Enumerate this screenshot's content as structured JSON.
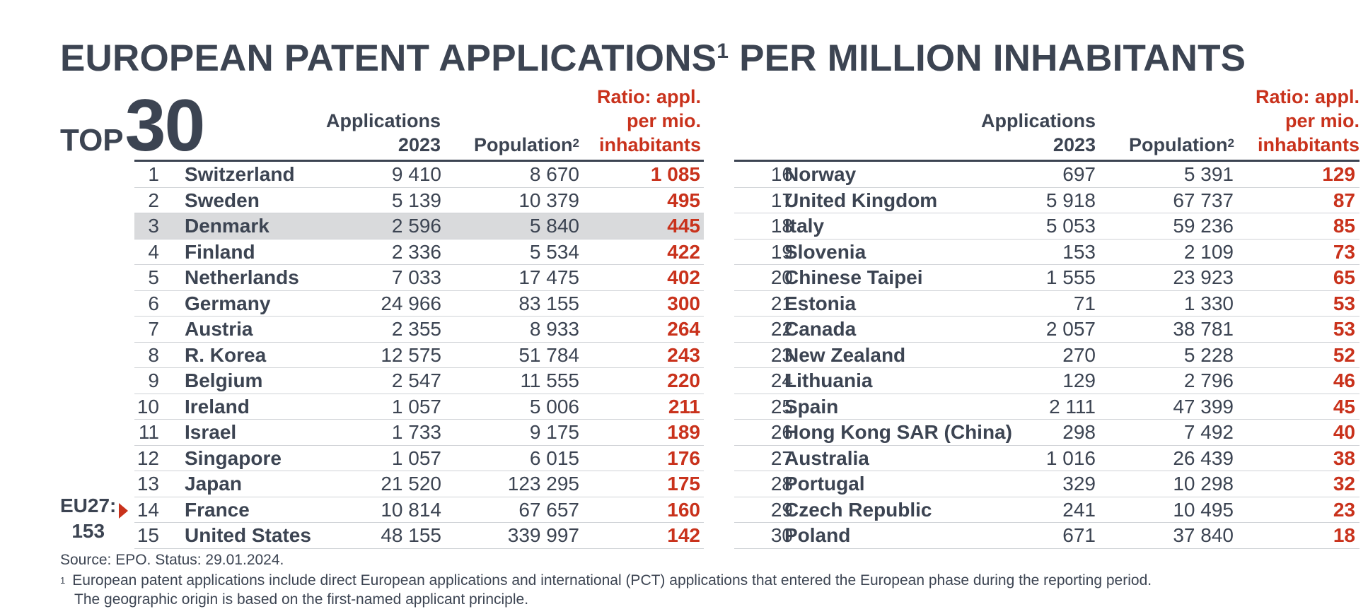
{
  "title": {
    "main": "EUROPEAN PATENT APPLICATIONS",
    "sup": "1",
    "rest": " PER MILLION INHABITANTS"
  },
  "badge": {
    "top": "TOP",
    "num": "30"
  },
  "headers": {
    "apps_l1": "Applications",
    "apps_l2": "2023",
    "pop": "Population",
    "pop_sup": "2",
    "ratio_l1": "Ratio: appl.",
    "ratio_l2": "per mio.",
    "ratio_l3": "inhabitants"
  },
  "left_rows": [
    {
      "rank": "1",
      "country": "Switzerland",
      "apps": "9 410",
      "pop": "8 670",
      "ratio": "1 085"
    },
    {
      "rank": "2",
      "country": "Sweden",
      "apps": "5 139",
      "pop": "10 379",
      "ratio": "495"
    },
    {
      "rank": "3",
      "country": "Denmark",
      "apps": "2 596",
      "pop": "5 840",
      "ratio": "445"
    },
    {
      "rank": "4",
      "country": "Finland",
      "apps": "2 336",
      "pop": "5 534",
      "ratio": "422"
    },
    {
      "rank": "5",
      "country": "Netherlands",
      "apps": "7 033",
      "pop": "17 475",
      "ratio": "402"
    },
    {
      "rank": "6",
      "country": "Germany",
      "apps": "24 966",
      "pop": "83 155",
      "ratio": "300"
    },
    {
      "rank": "7",
      "country": "Austria",
      "apps": "2 355",
      "pop": "8 933",
      "ratio": "264"
    },
    {
      "rank": "8",
      "country": "R. Korea",
      "apps": "12 575",
      "pop": "51 784",
      "ratio": "243"
    },
    {
      "rank": "9",
      "country": "Belgium",
      "apps": "2 547",
      "pop": "11 555",
      "ratio": "220"
    },
    {
      "rank": "10",
      "country": "Ireland",
      "apps": "1 057",
      "pop": "5 006",
      "ratio": "211"
    },
    {
      "rank": "11",
      "country": "Israel",
      "apps": "1 733",
      "pop": "9 175",
      "ratio": "189"
    },
    {
      "rank": "12",
      "country": "Singapore",
      "apps": "1 057",
      "pop": "6 015",
      "ratio": "176"
    },
    {
      "rank": "13",
      "country": "Japan",
      "apps": "21 520",
      "pop": "123 295",
      "ratio": "175"
    },
    {
      "rank": "14",
      "country": "France",
      "apps": "10 814",
      "pop": "67 657",
      "ratio": "160"
    },
    {
      "rank": "15",
      "country": "United States",
      "apps": "48 155",
      "pop": "339 997",
      "ratio": "142"
    }
  ],
  "right_rows": [
    {
      "rank": "16",
      "country": "Norway",
      "apps": "697",
      "pop": "5 391",
      "ratio": "129"
    },
    {
      "rank": "17",
      "country": "United Kingdom",
      "apps": "5 918",
      "pop": "67 737",
      "ratio": "87"
    },
    {
      "rank": "18",
      "country": "Italy",
      "apps": "5 053",
      "pop": "59 236",
      "ratio": "85"
    },
    {
      "rank": "19",
      "country": "Slovenia",
      "apps": "153",
      "pop": "2 109",
      "ratio": "73"
    },
    {
      "rank": "20",
      "country": "Chinese Taipei",
      "apps": "1 555",
      "pop": "23 923",
      "ratio": "65"
    },
    {
      "rank": "21",
      "country": "Estonia",
      "apps": "71",
      "pop": "1 330",
      "ratio": "53"
    },
    {
      "rank": "22",
      "country": "Canada",
      "apps": "2 057",
      "pop": "38 781",
      "ratio": "53"
    },
    {
      "rank": "23",
      "country": "New Zealand",
      "apps": "270",
      "pop": "5 228",
      "ratio": "52"
    },
    {
      "rank": "24",
      "country": "Lithuania",
      "apps": "129",
      "pop": "2 796",
      "ratio": "46"
    },
    {
      "rank": "25",
      "country": "Spain",
      "apps": "2 111",
      "pop": "47 399",
      "ratio": "45"
    },
    {
      "rank": "26",
      "country": "Hong Kong SAR (China)",
      "apps": "298",
      "pop": "7 492",
      "ratio": "40"
    },
    {
      "rank": "27",
      "country": "Australia",
      "apps": "1 016",
      "pop": "26 439",
      "ratio": "38"
    },
    {
      "rank": "28",
      "country": "Portugal",
      "apps": "329",
      "pop": "10 298",
      "ratio": "32"
    },
    {
      "rank": "29",
      "country": "Czech Republic",
      "apps": "241",
      "pop": "10 495",
      "ratio": "23"
    },
    {
      "rank": "30",
      "country": "Poland",
      "apps": "671",
      "pop": "37 840",
      "ratio": "18"
    }
  ],
  "highlight_rank": "3",
  "eu": {
    "label": "EU27:",
    "value": "153"
  },
  "source": "Source: EPO. Status: 29.01.2024.",
  "footnote": {
    "marker": "1",
    "line1": "European patent applications include direct European applications and international (PCT) applications that entered the European phase during the reporting period.",
    "line2": "The geographic origin is based on the first-named applicant principle."
  },
  "colors": {
    "text": "#3c4452",
    "accent": "#c9321c",
    "highlight": "#d9dadc"
  }
}
